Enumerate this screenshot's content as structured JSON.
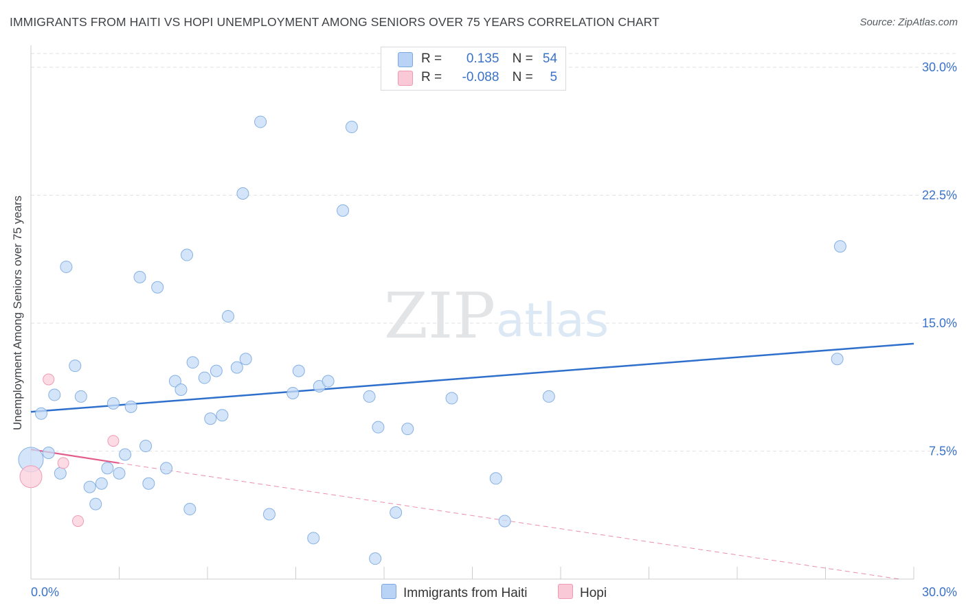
{
  "title": "IMMIGRANTS FROM HAITI VS HOPI UNEMPLOYMENT AMONG SENIORS OVER 75 YEARS CORRELATION CHART",
  "source": "Source: ZipAtlas.com",
  "watermark": {
    "zip": "ZIP",
    "atlas": "atlas"
  },
  "legend": {
    "r_label": "R =",
    "n_label": "N =",
    "rows": [
      {
        "r": "0.135",
        "n": "54",
        "color": "#b8d3f5",
        "border": "#7aa7df"
      },
      {
        "r": "-0.088",
        "n": "5",
        "color": "#f9c9d7",
        "border": "#ee98b2"
      }
    ]
  },
  "bottom_legend": [
    "Immigrants from Haiti",
    "Hopi"
  ],
  "colors": {
    "haiti_fill": "#c6dcf7",
    "haiti_stroke": "#86b0e3",
    "haiti_line": "#2e6fcc",
    "hopi_fill": "#fbd2de",
    "hopi_stroke": "#ef9ab5",
    "hopi_line": "#e35d8c",
    "tick_label": "#3a72c8",
    "grid": "#dfe2e6"
  },
  "chart_data": {
    "type": "scatter",
    "title": "IMMIGRANTS FROM HAITI VS HOPI UNEMPLOYMENT AMONG SENIORS OVER 75 YEARS CORRELATION CHART",
    "xlabel": "",
    "ylabel": "Unemployment Among Seniors over 75 years",
    "xlim": [
      0,
      30
    ],
    "ylim": [
      0,
      31
    ],
    "x_tick_labels": [
      "0.0%",
      "30.0%"
    ],
    "y_ticks": [
      7.5,
      15.0,
      22.5,
      30.0
    ],
    "y_tick_labels": [
      "7.5%",
      "15.0%",
      "22.5%",
      "30.0%"
    ],
    "grid": true,
    "series": [
      {
        "name": "Immigrants from Haiti",
        "r": 0.135,
        "n": 54,
        "trend": {
          "x": [
            0,
            30
          ],
          "y": [
            9.8,
            13.8
          ]
        },
        "points": [
          [
            0.0,
            7.0
          ],
          [
            0.35,
            9.7
          ],
          [
            0.6,
            7.4
          ],
          [
            0.8,
            10.8
          ],
          [
            1.0,
            6.2
          ],
          [
            1.2,
            18.3
          ],
          [
            1.5,
            12.5
          ],
          [
            1.7,
            10.7
          ],
          [
            2.0,
            5.4
          ],
          [
            2.2,
            4.4
          ],
          [
            2.4,
            5.6
          ],
          [
            2.6,
            6.5
          ],
          [
            2.8,
            10.3
          ],
          [
            3.0,
            6.2
          ],
          [
            3.2,
            7.3
          ],
          [
            3.4,
            10.1
          ],
          [
            3.7,
            17.7
          ],
          [
            3.9,
            7.8
          ],
          [
            4.0,
            5.6
          ],
          [
            4.3,
            17.1
          ],
          [
            4.6,
            6.5
          ],
          [
            4.9,
            11.6
          ],
          [
            5.1,
            11.1
          ],
          [
            5.4,
            4.1
          ],
          [
            5.3,
            19.0
          ],
          [
            5.5,
            12.7
          ],
          [
            5.9,
            11.8
          ],
          [
            6.1,
            9.4
          ],
          [
            6.3,
            12.2
          ],
          [
            6.5,
            9.6
          ],
          [
            6.7,
            15.4
          ],
          [
            7.0,
            12.4
          ],
          [
            7.3,
            12.9
          ],
          [
            7.2,
            22.6
          ],
          [
            7.8,
            26.8
          ],
          [
            8.1,
            3.8
          ],
          [
            8.9,
            10.9
          ],
          [
            9.1,
            12.2
          ],
          [
            9.6,
            2.4
          ],
          [
            9.8,
            11.3
          ],
          [
            10.1,
            11.6
          ],
          [
            10.6,
            21.6
          ],
          [
            10.9,
            26.5
          ],
          [
            11.5,
            10.7
          ],
          [
            11.7,
            1.2
          ],
          [
            11.8,
            8.9
          ],
          [
            12.4,
            3.9
          ],
          [
            12.8,
            8.8
          ],
          [
            14.3,
            10.6
          ],
          [
            15.8,
            5.9
          ],
          [
            16.1,
            3.4
          ],
          [
            17.6,
            10.7
          ],
          [
            27.4,
            12.9
          ],
          [
            27.5,
            19.5
          ]
        ]
      },
      {
        "name": "Hopi",
        "r": -0.088,
        "n": 5,
        "trend": {
          "x": [
            0,
            3.0
          ],
          "y": [
            7.6,
            6.8
          ]
        },
        "trend_extended": {
          "x": [
            3.0,
            29.5
          ],
          "y": [
            6.8,
            0.0
          ]
        },
        "points": [
          [
            0.0,
            6.0
          ],
          [
            0.6,
            11.7
          ],
          [
            1.1,
            6.8
          ],
          [
            1.6,
            3.4
          ],
          [
            2.8,
            8.1
          ]
        ]
      }
    ]
  }
}
